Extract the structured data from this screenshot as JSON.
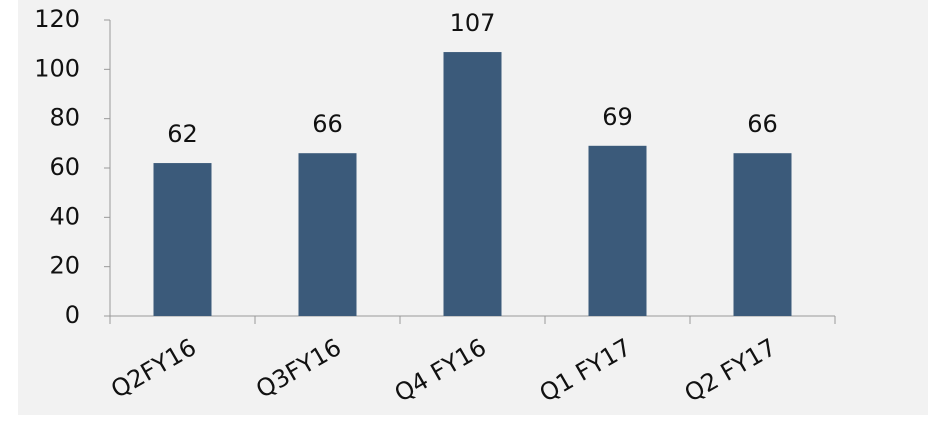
{
  "chart_data": {
    "type": "bar",
    "categories": [
      "Q2FY16",
      "Q3FY16",
      "Q4 FY16",
      "Q1 FY17",
      "Q2 FY17"
    ],
    "values": [
      62,
      66,
      107,
      69,
      66
    ],
    "color": "#3b5a7a",
    "ylim": [
      0,
      120
    ],
    "yticks": [
      0,
      20,
      40,
      60,
      80,
      100,
      120
    ],
    "grid": false
  }
}
